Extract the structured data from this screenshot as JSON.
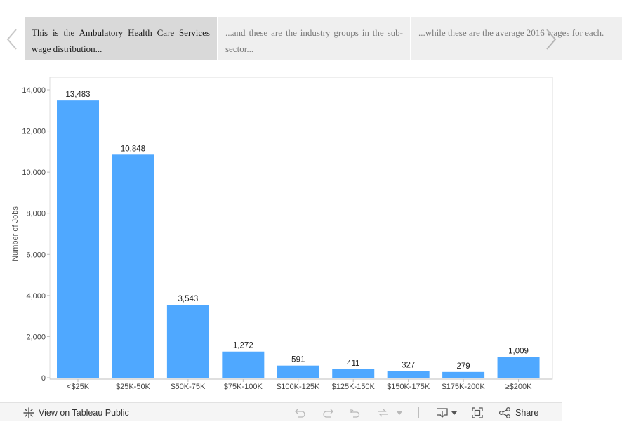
{
  "story": {
    "points": [
      {
        "text": "This is the Ambulatory Health Care Services wage distribution..."
      },
      {
        "text": "...and these are the industry groups in the sub-sector..."
      },
      {
        "text": "...while these are the average 2016 wages for each."
      }
    ]
  },
  "chart_data": {
    "type": "bar",
    "title": "",
    "xlabel": "",
    "ylabel": "Number of Jobs",
    "ylim": [
      0,
      14000
    ],
    "yticks": [
      0,
      2000,
      4000,
      6000,
      8000,
      10000,
      12000,
      14000
    ],
    "ytick_labels": [
      "0",
      "2,000",
      "4,000",
      "6,000",
      "8,000",
      "10,000",
      "12,000",
      "14,000"
    ],
    "categories": [
      "<$25K",
      "$25K-50K",
      "$50K-75K",
      "$75K-100K",
      "$100K-125K",
      "$125K-150K",
      "$150K-175K",
      "$175K-200K",
      "≥$200K"
    ],
    "values": [
      13483,
      10848,
      3543,
      1272,
      591,
      411,
      327,
      279,
      1009
    ],
    "value_labels": [
      "13,483",
      "10,848",
      "3,543",
      "1,272",
      "591",
      "411",
      "327",
      "279",
      "1,009"
    ],
    "bar_color": "#4fa8ff"
  },
  "toolbar": {
    "view_label": "View on Tableau Public",
    "share_label": "Share"
  }
}
